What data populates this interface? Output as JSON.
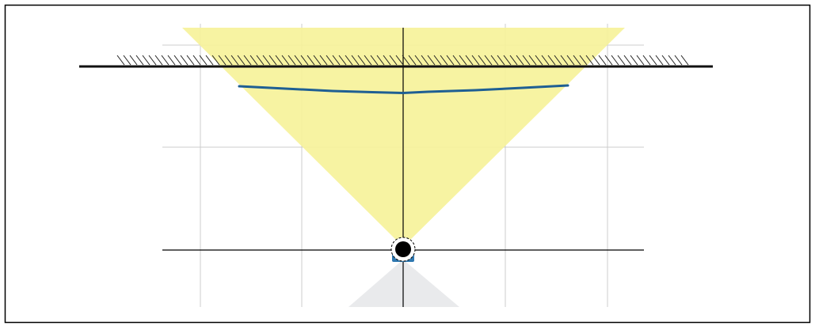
{
  "colors": {
    "background": "#ffffff",
    "frame": "#000000",
    "grid": "#cccccc",
    "axis": "#000000",
    "beam": "#f6f29a",
    "rear_cone": "#e9eaec",
    "wall": "#111111",
    "wall_hatch": "#222222",
    "scan_line": "#1f5f93",
    "sensor_body": "#000000",
    "sensor_mount": "#2f78b0"
  },
  "icons": {
    "sensor": "circle-dot-icon",
    "wall": "hatched-wall-icon"
  },
  "view": {
    "grid_lines": "on"
  }
}
